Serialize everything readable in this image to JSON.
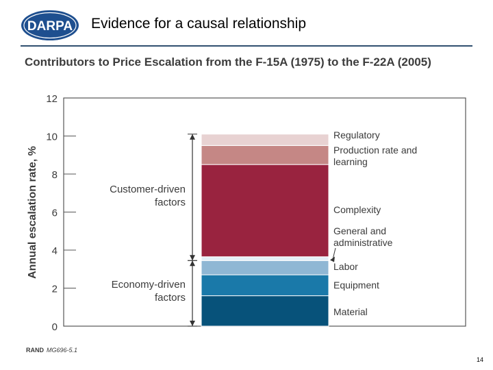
{
  "slide": {
    "title": "Evidence for a causal relationship",
    "page_number": "14",
    "logo_text": "DARPA"
  },
  "colors": {
    "material": "#07527a",
    "equipment": "#1a79a9",
    "labor": "#8fb7d4",
    "gen_admin": "#e4eef6",
    "complexity": "#99233f",
    "production": "#c58785",
    "regulatory": "#e8d2d2",
    "title_rule": "#2f4f6f",
    "logo_blue": "#1e4f8f"
  },
  "chart_data": {
    "type": "bar",
    "title": "Contributors to Price Escalation from the F-15A (1975) to the F-22A (2005)",
    "ylabel": "Annual escalation rate, %",
    "xlabel": "",
    "ylim": [
      0,
      12
    ],
    "yticks": [
      "0",
      "2",
      "4",
      "6",
      "8",
      "10",
      "12"
    ],
    "grid": false,
    "stacked": true,
    "segments": [
      {
        "key": "material",
        "name": "Material",
        "value": 1.6
      },
      {
        "key": "equipment",
        "name": "Equipment",
        "value": 1.1
      },
      {
        "key": "labor",
        "name": "Labor",
        "value": 0.75
      },
      {
        "key": "gen_admin",
        "name": "General and administrative",
        "value": 0.2
      },
      {
        "key": "complexity",
        "name": "Complexity",
        "value": 4.85
      },
      {
        "key": "production",
        "name": "Production rate and learning",
        "value": 1.0
      },
      {
        "key": "regulatory",
        "name": "Regulatory",
        "value": 0.6
      }
    ],
    "groups": [
      {
        "label_lines": [
          "Customer-driven",
          "factors"
        ],
        "from": 3.45,
        "to": 10.1
      },
      {
        "label_lines": [
          "Economy-driven",
          "factors"
        ],
        "from": 0,
        "to": 3.45
      }
    ],
    "source": "RAND",
    "source_id": "MG696-5.1"
  }
}
